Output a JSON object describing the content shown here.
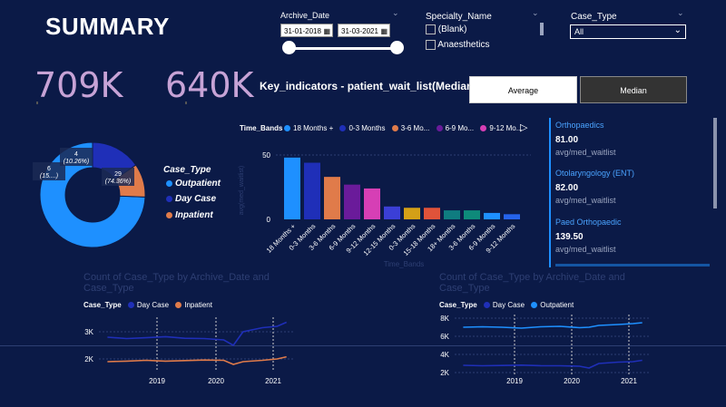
{
  "header": {
    "title": "SUMMARY"
  },
  "kpis": {
    "kpi1": "709K",
    "kpi2": "640K"
  },
  "filters": {
    "archive_date": {
      "label": "Archive_Date",
      "start": "31-01-2018",
      "end": "31-03-2021"
    },
    "specialty": {
      "label": "Specialty_Name",
      "options": [
        "(Blank)",
        "Anaesthetics"
      ]
    },
    "case_type": {
      "label": "Case_Type",
      "selected": "All"
    }
  },
  "indicators": {
    "title": "Key_indicators - patient_wait_list(Median)",
    "average_label": "Average",
    "median_label": "Median"
  },
  "donut": {
    "legend_title": "Case_Type",
    "outer_labels": {
      "outpatient": "29",
      "outpatient_pct": "(74.36%)",
      "daycase": "6",
      "daycase_pct": "(15....)",
      "inpatient": "4",
      "inpatient_pct": "(10.26%)"
    }
  },
  "bar_chart": {
    "legend_title": "Time_Bands",
    "legend_items": [
      "18 Months +",
      "0-3 Months",
      "3-6 Mo...",
      "6-9 Mo...",
      "9-12 Mo..."
    ],
    "ylabel": "avg(med_waitlist)",
    "xlabel": "Time_Bands",
    "y_ticks": [
      "50",
      "0"
    ]
  },
  "cards": [
    {
      "title": "Orthopaedics",
      "value": "81.00",
      "sub": "avg/med_waitlist"
    },
    {
      "title": "Otolaryngology (ENT)",
      "value": "82.00",
      "sub": "avg/med_waitlist"
    },
    {
      "title": "Paed Orthopaedic",
      "value": "139.50",
      "sub": "avg/med_waitlist"
    }
  ],
  "line_left": {
    "title": "Count of Case_Type by Archive_Date and Case_Type",
    "legend_title": "Case_Type",
    "legend_items": [
      "Day Case",
      "Inpatient"
    ],
    "y_ticks": [
      "3K",
      "2K"
    ],
    "x_ticks": [
      "2019",
      "2020",
      "2021"
    ]
  },
  "line_right": {
    "title": "Count of Case_Type by Archive_Date and Case_Type",
    "legend_title": "Case_Type",
    "legend_items": [
      "Day Case",
      "Outpatient"
    ],
    "y_ticks": [
      "8K",
      "6K",
      "4K",
      "2K"
    ],
    "x_ticks": [
      "2019",
      "2020",
      "2021"
    ]
  },
  "colors": {
    "bg": "#0b1a47",
    "blue_bright": "#1e90ff",
    "blue_dark": "#1f2fb8",
    "orange": "#e07b4a",
    "purple": "#6a1b9a",
    "pink": "#d63fb5",
    "teal": "#0f7c80",
    "kpi": "#c7a3d6"
  },
  "chart_data": [
    {
      "type": "pie",
      "categories": [
        "Outpatient",
        "Day Case",
        "Inpatient"
      ],
      "values": [
        29,
        6,
        4
      ],
      "percent": [
        74.36,
        15.38,
        10.26
      ],
      "legend": "right"
    },
    {
      "type": "bar",
      "categories": [
        "18 Months +",
        "0-3 Months",
        "3-6 Months",
        "6-9 Months",
        "9-12 Months",
        "12-15 Months",
        "0-3 Months",
        "15-18 Months",
        "18+ Months",
        "3-6 Months",
        "6-9 Months",
        "9-12 Months"
      ],
      "values": [
        48,
        44,
        33,
        27,
        24,
        10,
        9,
        9,
        7,
        7,
        5,
        4
      ],
      "colors": [
        "#1e90ff",
        "#1f2fb8",
        "#e07b4a",
        "#6a1b9a",
        "#d63fb5",
        "#3b3fd6",
        "#d4a017",
        "#e0533a",
        "#0f7c80",
        "#0e8a7a",
        "#1e90ff",
        "#2563eb"
      ],
      "xlabel": "Time_Bands",
      "ylabel": "avg(med_waitlist)",
      "ylim": [
        0,
        55
      ]
    },
    {
      "type": "line",
      "title": "Count of Case_Type by Archive_Date and Case_Type",
      "series": [
        {
          "name": "Day Case",
          "x": [
            "2018-02",
            "2018-06",
            "2018-10",
            "2019-02",
            "2019-06",
            "2019-10",
            "2020-02",
            "2020-04",
            "2020-06",
            "2020-10",
            "2021-01",
            "2021-03"
          ],
          "values": [
            2800,
            2750,
            2780,
            2820,
            2760,
            2750,
            2700,
            2500,
            3000,
            3150,
            3200,
            3350
          ]
        },
        {
          "name": "Inpatient",
          "x": [
            "2018-02",
            "2018-06",
            "2018-10",
            "2019-02",
            "2019-06",
            "2019-10",
            "2020-02",
            "2020-04",
            "2020-06",
            "2020-10",
            "2021-01",
            "2021-03"
          ],
          "values": [
            1900,
            1920,
            1950,
            1920,
            1940,
            1960,
            1950,
            1800,
            1900,
            1950,
            2000,
            2080
          ]
        }
      ],
      "ylim": [
        1500,
        3500
      ]
    },
    {
      "type": "line",
      "title": "Count of Case_Type by Archive_Date and Case_Type",
      "series": [
        {
          "name": "Day Case",
          "x": [
            "2018-02",
            "2018-06",
            "2018-10",
            "2019-02",
            "2019-06",
            "2019-10",
            "2020-02",
            "2020-04",
            "2020-06",
            "2020-10",
            "2021-01",
            "2021-03"
          ],
          "values": [
            2800,
            2750,
            2780,
            2820,
            2760,
            2750,
            2700,
            2500,
            3000,
            3150,
            3200,
            3350
          ]
        },
        {
          "name": "Outpatient",
          "x": [
            "2018-02",
            "2018-06",
            "2018-10",
            "2019-02",
            "2019-06",
            "2019-10",
            "2020-02",
            "2020-04",
            "2020-06",
            "2020-10",
            "2021-01",
            "2021-03"
          ],
          "values": [
            7000,
            7050,
            7000,
            6900,
            7050,
            7100,
            6950,
            7000,
            7200,
            7300,
            7400,
            7500
          ]
        }
      ],
      "ylim": [
        1500,
        8500
      ]
    }
  ]
}
